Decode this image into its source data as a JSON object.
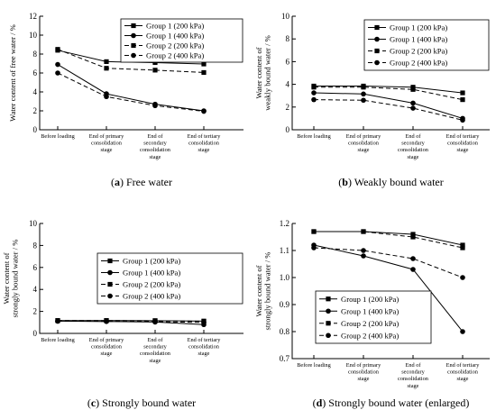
{
  "chart_data": [
    {
      "type": "line",
      "panel_letter": "a",
      "caption": "Free water",
      "ylabel": [
        "Water content of free water / %"
      ],
      "ylim": [
        0,
        12
      ],
      "yticks": [
        0,
        2,
        4,
        6,
        8,
        10,
        12
      ],
      "ytick_labels": [
        "0",
        "2",
        "4",
        "6",
        "8",
        "10",
        "12"
      ],
      "categories": [
        [
          "Before loading"
        ],
        [
          "End of primary",
          "consolidation",
          "stage"
        ],
        [
          "End of",
          "secondary",
          "consolidation",
          "stage"
        ],
        [
          "End of tertiary",
          "consolidation",
          "stage"
        ]
      ],
      "legend_position": "top-right",
      "series": [
        {
          "name": "Group 1 (200 kPa)",
          "style": "solid",
          "marker": "square",
          "values": [
            8.4,
            7.2,
            7.1,
            6.95
          ]
        },
        {
          "name": "Group 1 (400 kPa)",
          "style": "solid",
          "marker": "circle",
          "values": [
            6.9,
            3.8,
            2.7,
            2.0
          ]
        },
        {
          "name": "Group 2 (200 kPa)",
          "style": "dashed",
          "marker": "square",
          "values": [
            8.5,
            6.5,
            6.3,
            6.05
          ]
        },
        {
          "name": "Group 2 (400 kPa)",
          "style": "dashed",
          "marker": "circle",
          "values": [
            6.0,
            3.5,
            2.55,
            1.95
          ]
        }
      ]
    },
    {
      "type": "line",
      "panel_letter": "b",
      "caption": "Weakly bound water",
      "ylabel": [
        "Water content of",
        "weakly bound water / %"
      ],
      "ylim": [
        0,
        10
      ],
      "yticks": [
        0,
        2,
        4,
        6,
        8,
        10
      ],
      "ytick_labels": [
        "0",
        "2",
        "4",
        "6",
        "8",
        "10"
      ],
      "categories": [
        [
          "Before loading"
        ],
        [
          "End of primary",
          "consolidation",
          "stage"
        ],
        [
          "End of",
          "secondary",
          "consolidation",
          "stage"
        ],
        [
          "End of tertiary",
          "consolidation",
          "stage"
        ]
      ],
      "legend_position": "top-right",
      "series": [
        {
          "name": "Group 1 (200 kPa)",
          "style": "solid",
          "marker": "square",
          "values": [
            3.85,
            3.85,
            3.75,
            3.25
          ]
        },
        {
          "name": "Group 1 (400 kPa)",
          "style": "solid",
          "marker": "circle",
          "values": [
            3.25,
            3.15,
            2.35,
            1.0
          ]
        },
        {
          "name": "Group 2 (200 kPa)",
          "style": "dashed",
          "marker": "square",
          "values": [
            3.75,
            3.75,
            3.55,
            2.65
          ]
        },
        {
          "name": "Group 2 (400 kPa)",
          "style": "dashed",
          "marker": "circle",
          "values": [
            2.65,
            2.6,
            1.9,
            0.85
          ]
        }
      ]
    },
    {
      "type": "line",
      "panel_letter": "c",
      "caption": "Strongly bound water",
      "ylabel": [
        "Water content of",
        "strongly bound water / %"
      ],
      "ylim": [
        0,
        10
      ],
      "yticks": [
        0,
        2,
        4,
        6,
        8,
        10
      ],
      "ytick_labels": [
        "0",
        "2",
        "4",
        "6",
        "8",
        "10"
      ],
      "categories": [
        [
          "Before loading"
        ],
        [
          "End of primary",
          "consolidation",
          "stage"
        ],
        [
          "End of",
          "secondary",
          "consolidation",
          "stage"
        ],
        [
          "End of tertiary",
          "consolidation",
          "stage"
        ]
      ],
      "legend_position": "top-right",
      "series": [
        {
          "name": "Group 1 (200 kPa)",
          "style": "solid",
          "marker": "square",
          "values": [
            1.17,
            1.17,
            1.16,
            1.12
          ]
        },
        {
          "name": "Group 1 (400 kPa)",
          "style": "solid",
          "marker": "circle",
          "values": [
            1.12,
            1.08,
            1.03,
            0.8
          ]
        },
        {
          "name": "Group 2 (200 kPa)",
          "style": "dashed",
          "marker": "square",
          "values": [
            1.17,
            1.17,
            1.15,
            1.11
          ]
        },
        {
          "name": "Group 2 (400 kPa)",
          "style": "dashed",
          "marker": "circle",
          "values": [
            1.11,
            1.1,
            1.07,
            1.0
          ]
        }
      ]
    },
    {
      "type": "line",
      "panel_letter": "d",
      "caption": "Strongly bound water (enlarged)",
      "ylabel": [
        "Water content of",
        "strongly bound water / %"
      ],
      "ylim": [
        0.7,
        1.2
      ],
      "yticks": [
        0.7,
        0.8,
        0.9,
        1.0,
        1.1,
        1.2
      ],
      "ytick_labels": [
        "0.7",
        "0.8",
        "0.9",
        "1.0",
        "1.1",
        "1.2"
      ],
      "categories": [
        [
          "Before loading"
        ],
        [
          "End of primary",
          "consolidation",
          "stage"
        ],
        [
          "End of",
          "secondary",
          "consolidation",
          "stage"
        ],
        [
          "End of tertiary",
          "consolidation",
          "stage"
        ]
      ],
      "legend_position": "bottom-left",
      "series": [
        {
          "name": "Group 1 (200 kPa)",
          "style": "solid",
          "marker": "square",
          "values": [
            1.17,
            1.17,
            1.16,
            1.12
          ]
        },
        {
          "name": "Group 1 (400 kPa)",
          "style": "solid",
          "marker": "circle",
          "values": [
            1.12,
            1.08,
            1.03,
            0.8
          ]
        },
        {
          "name": "Group 2 (200 kPa)",
          "style": "dashed",
          "marker": "square",
          "values": [
            1.17,
            1.17,
            1.15,
            1.11
          ]
        },
        {
          "name": "Group 2 (400 kPa)",
          "style": "dashed",
          "marker": "circle",
          "values": [
            1.11,
            1.1,
            1.07,
            1.0
          ]
        }
      ]
    }
  ]
}
